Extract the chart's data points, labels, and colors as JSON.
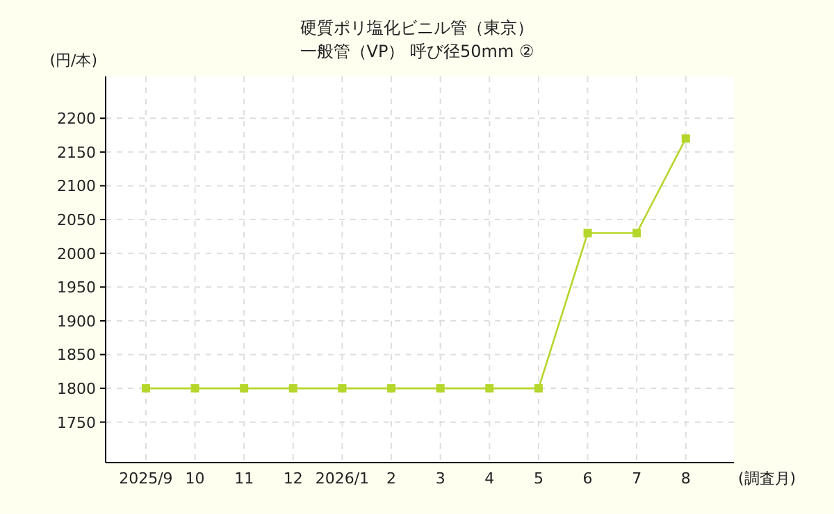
{
  "chart_data": {
    "type": "line",
    "title": "硬質ポリ塩化ビニル管（東京）",
    "subtitle": "一般管（VP） 呼び径50mm ②",
    "xlabel": "(調査月)",
    "ylabel": "(円/本)",
    "categories": [
      "2025/9",
      "10",
      "11",
      "12",
      "2026/1",
      "2",
      "3",
      "4",
      "5",
      "6",
      "7",
      "8"
    ],
    "series": [
      {
        "color": "#b5d62a",
        "values": [
          1800,
          1800,
          1800,
          1800,
          1800,
          1800,
          1800,
          1800,
          1800,
          2030,
          2030,
          2170
        ]
      }
    ],
    "ylim": [
      1690,
      2262
    ],
    "yticks": [
      1750,
      1800,
      1850,
      1900,
      1950,
      2000,
      2050,
      2100,
      2150,
      2200
    ],
    "grid": true,
    "marker": "square",
    "line_style": "solid"
  }
}
